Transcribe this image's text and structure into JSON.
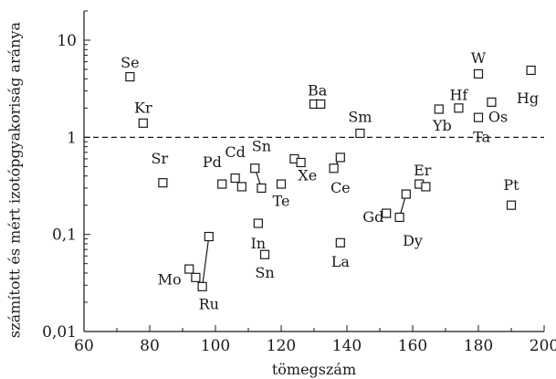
{
  "chart_data": {
    "type": "scatter",
    "title": "",
    "xlabel": "tömegszám",
    "ylabel": "számított és mért izotópgyakoriság aránya",
    "xlim": [
      60,
      200
    ],
    "ylim": [
      0.01,
      20
    ],
    "yscale": "log",
    "x_ticks": [
      60,
      80,
      100,
      120,
      140,
      160,
      180,
      200
    ],
    "x_tick_labels": [
      "60",
      "80",
      "100",
      "120",
      "140",
      "160",
      "180",
      "200"
    ],
    "y_ticks": [
      0.01,
      0.1,
      1,
      10
    ],
    "y_tick_labels": [
      "0,01",
      "0,1",
      "1",
      "10"
    ],
    "reference_line": {
      "y": 1,
      "style": "dashed"
    },
    "marker": "open-square",
    "points": [
      {
        "x": 74,
        "y": 4.2
      },
      {
        "x": 78,
        "y": 1.4
      },
      {
        "x": 84,
        "y": 0.34
      },
      {
        "x": 92,
        "y": 0.044
      },
      {
        "x": 94,
        "y": 0.036
      },
      {
        "x": 96,
        "y": 0.029
      },
      {
        "x": 98,
        "y": 0.095
      },
      {
        "x": 102,
        "y": 0.33
      },
      {
        "x": 106,
        "y": 0.38
      },
      {
        "x": 108,
        "y": 0.31
      },
      {
        "x": 112,
        "y": 0.48
      },
      {
        "x": 113,
        "y": 0.13
      },
      {
        "x": 114,
        "y": 0.3
      },
      {
        "x": 115,
        "y": 0.062
      },
      {
        "x": 120,
        "y": 0.33
      },
      {
        "x": 124,
        "y": 0.6
      },
      {
        "x": 126,
        "y": 0.55
      },
      {
        "x": 130,
        "y": 2.2
      },
      {
        "x": 132,
        "y": 2.2
      },
      {
        "x": 136,
        "y": 0.48
      },
      {
        "x": 138,
        "y": 0.62
      },
      {
        "x": 138,
        "y": 0.082
      },
      {
        "x": 144,
        "y": 1.1
      },
      {
        "x": 152,
        "y": 0.165
      },
      {
        "x": 156,
        "y": 0.15
      },
      {
        "x": 158,
        "y": 0.26
      },
      {
        "x": 162,
        "y": 0.33
      },
      {
        "x": 164,
        "y": 0.31
      },
      {
        "x": 168,
        "y": 1.95
      },
      {
        "x": 174,
        "y": 2.0
      },
      {
        "x": 180,
        "y": 4.5
      },
      {
        "x": 180,
        "y": 1.6
      },
      {
        "x": 184,
        "y": 2.3
      },
      {
        "x": 190,
        "y": 0.2
      },
      {
        "x": 196,
        "y": 4.9
      }
    ],
    "connectors": [
      {
        "x1": 96,
        "y1": 0.029,
        "x2": 98,
        "y2": 0.095
      },
      {
        "x1": 112,
        "y1": 0.48,
        "x2": 114,
        "y2": 0.3
      },
      {
        "x1": 136,
        "y1": 0.48,
        "x2": 138,
        "y2": 0.62
      },
      {
        "x1": 156,
        "y1": 0.15,
        "x2": 158,
        "y2": 0.26
      }
    ],
    "labels": [
      {
        "text": "Se",
        "x": 74,
        "y": 5.8
      },
      {
        "text": "Kr",
        "x": 78,
        "y": 2.0
      },
      {
        "text": "Sr",
        "x": 83,
        "y": 0.6
      },
      {
        "text": "Mo",
        "x": 86,
        "y": 0.034
      },
      {
        "text": "Ru",
        "x": 98,
        "y": 0.019
      },
      {
        "text": "Pd",
        "x": 99,
        "y": 0.55
      },
      {
        "text": "Cd",
        "x": 106,
        "y": 0.7
      },
      {
        "text": "Sn",
        "x": 114,
        "y": 0.8
      },
      {
        "text": "Te",
        "x": 120,
        "y": 0.22
      },
      {
        "text": "In",
        "x": 113,
        "y": 0.08
      },
      {
        "text": "Sn",
        "x": 115,
        "y": 0.04
      },
      {
        "text": "Xe",
        "x": 128,
        "y": 0.4
      },
      {
        "text": "Ba",
        "x": 131,
        "y": 3.0
      },
      {
        "text": "Ce",
        "x": 138,
        "y": 0.3
      },
      {
        "text": "La",
        "x": 138,
        "y": 0.052
      },
      {
        "text": "Sm",
        "x": 144,
        "y": 1.6
      },
      {
        "text": "Gd",
        "x": 148,
        "y": 0.15
      },
      {
        "text": "Er",
        "x": 163,
        "y": 0.45
      },
      {
        "text": "Dy",
        "x": 160,
        "y": 0.085
      },
      {
        "text": "Yb",
        "x": 169,
        "y": 1.3
      },
      {
        "text": "Hf",
        "x": 174,
        "y": 2.7
      },
      {
        "text": "W",
        "x": 180,
        "y": 6.5
      },
      {
        "text": "Ta",
        "x": 181,
        "y": 1.0
      },
      {
        "text": "Os",
        "x": 186,
        "y": 1.6
      },
      {
        "text": "Hg",
        "x": 195,
        "y": 2.5
      },
      {
        "text": "Pt",
        "x": 190,
        "y": 0.32
      }
    ]
  }
}
